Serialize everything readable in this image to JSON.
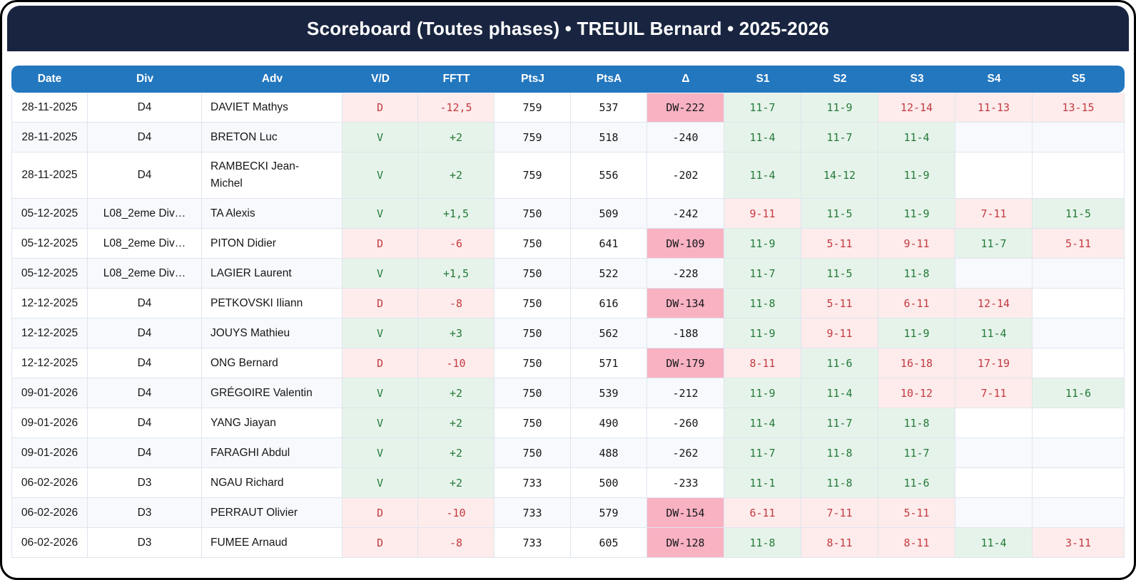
{
  "header": {
    "title": "Scoreboard (Toutes phases) • TREUIL Bernard • 2025-2026"
  },
  "colors": {
    "navy": "#192540",
    "header_blue": "#2377bf",
    "border": "#dfe5ee",
    "alt_row": "#f7f9fd",
    "win_bg": "#e6f3ea",
    "win_text": "#237a38",
    "loss_bg": "#fdeceb",
    "loss_text": "#c43a42",
    "dw_bg": "#f9b2c2",
    "dw_text": "#15171c",
    "body_text": "#161616"
  },
  "table": {
    "columns": [
      "Date",
      "Div",
      "Adv",
      "V/D",
      "FFTT",
      "PtsJ",
      "PtsA",
      "Δ",
      "S1",
      "S2",
      "S3",
      "S4",
      "S5"
    ],
    "rows": [
      {
        "date": "28-11-2025",
        "div": "D4",
        "adv": "DAVIET Mathys",
        "vd": "D",
        "fftt": "-12,5",
        "ptsj": "759",
        "ptsa": "537",
        "delta": "DW-222",
        "sets": [
          "11-7",
          "11-9",
          "12-14",
          "11-13",
          "13-15"
        ]
      },
      {
        "date": "28-11-2025",
        "div": "D4",
        "adv": "BRETON Luc",
        "vd": "V",
        "fftt": "+2",
        "ptsj": "759",
        "ptsa": "518",
        "delta": "-240",
        "sets": [
          "11-4",
          "11-7",
          "11-4",
          null,
          null
        ]
      },
      {
        "date": "28-11-2025",
        "div": "D4",
        "adv": "RAMBECKI Jean-Michel",
        "vd": "V",
        "fftt": "+2",
        "ptsj": "759",
        "ptsa": "556",
        "delta": "-202",
        "sets": [
          "11-4",
          "14-12",
          "11-9",
          null,
          null
        ]
      },
      {
        "date": "05-12-2025",
        "div": "L08_2eme Div…",
        "adv": "TA Alexis",
        "vd": "V",
        "fftt": "+1,5",
        "ptsj": "750",
        "ptsa": "509",
        "delta": "-242",
        "sets": [
          "9-11",
          "11-5",
          "11-9",
          "7-11",
          "11-5"
        ]
      },
      {
        "date": "05-12-2025",
        "div": "L08_2eme Div…",
        "adv": "PITON Didier",
        "vd": "D",
        "fftt": "-6",
        "ptsj": "750",
        "ptsa": "641",
        "delta": "DW-109",
        "sets": [
          "11-9",
          "5-11",
          "9-11",
          "11-7",
          "5-11"
        ]
      },
      {
        "date": "05-12-2025",
        "div": "L08_2eme Div…",
        "adv": "LAGIER Laurent",
        "vd": "V",
        "fftt": "+1,5",
        "ptsj": "750",
        "ptsa": "522",
        "delta": "-228",
        "sets": [
          "11-7",
          "11-5",
          "11-8",
          null,
          null
        ]
      },
      {
        "date": "12-12-2025",
        "div": "D4",
        "adv": "PETKOVSKI Iliann",
        "vd": "D",
        "fftt": "-8",
        "ptsj": "750",
        "ptsa": "616",
        "delta": "DW-134",
        "sets": [
          "11-8",
          "5-11",
          "6-11",
          "12-14",
          null
        ]
      },
      {
        "date": "12-12-2025",
        "div": "D4",
        "adv": "JOUYS Mathieu",
        "vd": "V",
        "fftt": "+3",
        "ptsj": "750",
        "ptsa": "562",
        "delta": "-188",
        "sets": [
          "11-9",
          "9-11",
          "11-9",
          "11-4",
          null
        ]
      },
      {
        "date": "12-12-2025",
        "div": "D4",
        "adv": "ONG Bernard",
        "vd": "D",
        "fftt": "-10",
        "ptsj": "750",
        "ptsa": "571",
        "delta": "DW-179",
        "sets": [
          "8-11",
          "11-6",
          "16-18",
          "17-19",
          null
        ]
      },
      {
        "date": "09-01-2026",
        "div": "D4",
        "adv": "GRÉGOIRE Valentin",
        "vd": "V",
        "fftt": "+2",
        "ptsj": "750",
        "ptsa": "539",
        "delta": "-212",
        "sets": [
          "11-9",
          "11-4",
          "10-12",
          "7-11",
          "11-6"
        ]
      },
      {
        "date": "09-01-2026",
        "div": "D4",
        "adv": "YANG Jiayan",
        "vd": "V",
        "fftt": "+2",
        "ptsj": "750",
        "ptsa": "490",
        "delta": "-260",
        "sets": [
          "11-4",
          "11-7",
          "11-8",
          null,
          null
        ]
      },
      {
        "date": "09-01-2026",
        "div": "D4",
        "adv": "FARAGHI Abdul",
        "vd": "V",
        "fftt": "+2",
        "ptsj": "750",
        "ptsa": "488",
        "delta": "-262",
        "sets": [
          "11-7",
          "11-8",
          "11-7",
          null,
          null
        ]
      },
      {
        "date": "06-02-2026",
        "div": "D3",
        "adv": "NGAU Richard",
        "vd": "V",
        "fftt": "+2",
        "ptsj": "733",
        "ptsa": "500",
        "delta": "-233",
        "sets": [
          "11-1",
          "11-8",
          "11-6",
          null,
          null
        ]
      },
      {
        "date": "06-02-2026",
        "div": "D3",
        "adv": "PERRAUT Olivier",
        "vd": "D",
        "fftt": "-10",
        "ptsj": "733",
        "ptsa": "579",
        "delta": "DW-154",
        "sets": [
          "6-11",
          "7-11",
          "5-11",
          null,
          null
        ]
      },
      {
        "date": "06-02-2026",
        "div": "D3",
        "adv": "FUMEE Arnaud",
        "vd": "D",
        "fftt": "-8",
        "ptsj": "733",
        "ptsa": "605",
        "delta": "DW-128",
        "sets": [
          "11-8",
          "8-11",
          "8-11",
          "11-4",
          "3-11"
        ]
      }
    ]
  }
}
